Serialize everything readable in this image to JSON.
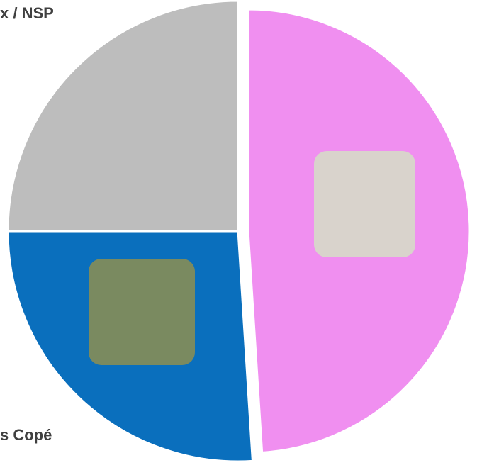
{
  "chart_data": {
    "type": "pie",
    "categories": [
      null,
      "s Copé",
      "x / NSP"
    ],
    "values": [
      49,
      26,
      25
    ],
    "colors": [
      "#f08ff0",
      "#0a6fbd",
      "#bdbdbd"
    ]
  }
}
